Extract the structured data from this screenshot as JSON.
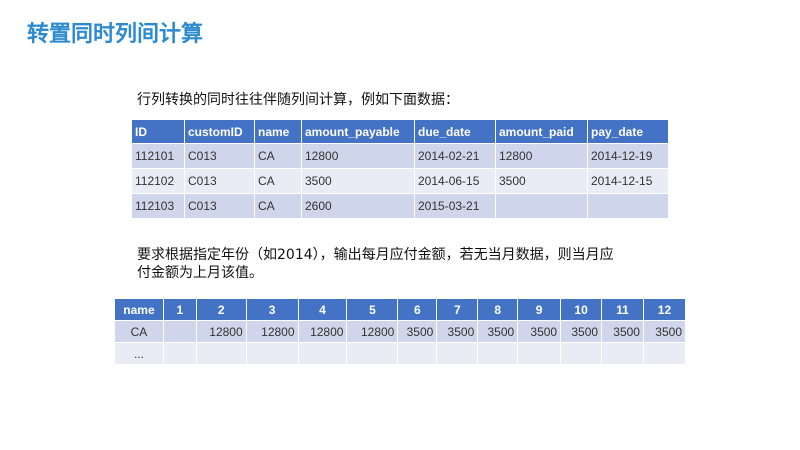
{
  "title": "转置同时列间计算",
  "intro": "行列转换的同时往往伴随列间计算，例如下面数据：",
  "table1": {
    "headers": [
      "ID",
      "customID",
      "name",
      "amount_payable",
      "due_date",
      "amount_paid",
      "pay_date"
    ],
    "rows": [
      [
        "112101",
        "C013",
        "CA",
        "12800",
        "2014-02-21",
        "12800",
        "2014-12-19"
      ],
      [
        "112102",
        "C013",
        "CA",
        "3500",
        "2014-06-15",
        "3500",
        "2014-12-15"
      ],
      [
        "112103",
        "C013",
        "CA",
        "2600",
        "2015-03-21",
        "",
        ""
      ]
    ]
  },
  "requirement": [
    "要求根据指定年份（如2014），输出每月应付金额，若无当月数据，则当月应",
    "付金额为上月该值。"
  ],
  "table2": {
    "headers": [
      "name",
      "1",
      "2",
      "3",
      "4",
      "5",
      "6",
      "7",
      "8",
      "9",
      "10",
      "11",
      "12"
    ],
    "rows": [
      [
        "CA",
        "",
        "12800",
        "12800",
        "12800",
        "12800",
        "3500",
        "3500",
        "3500",
        "3500",
        "3500",
        "3500",
        "3500"
      ],
      [
        "...",
        "",
        "",
        "",
        "",
        "",
        "",
        "",
        "",
        "",
        "",
        "",
        ""
      ]
    ]
  }
}
